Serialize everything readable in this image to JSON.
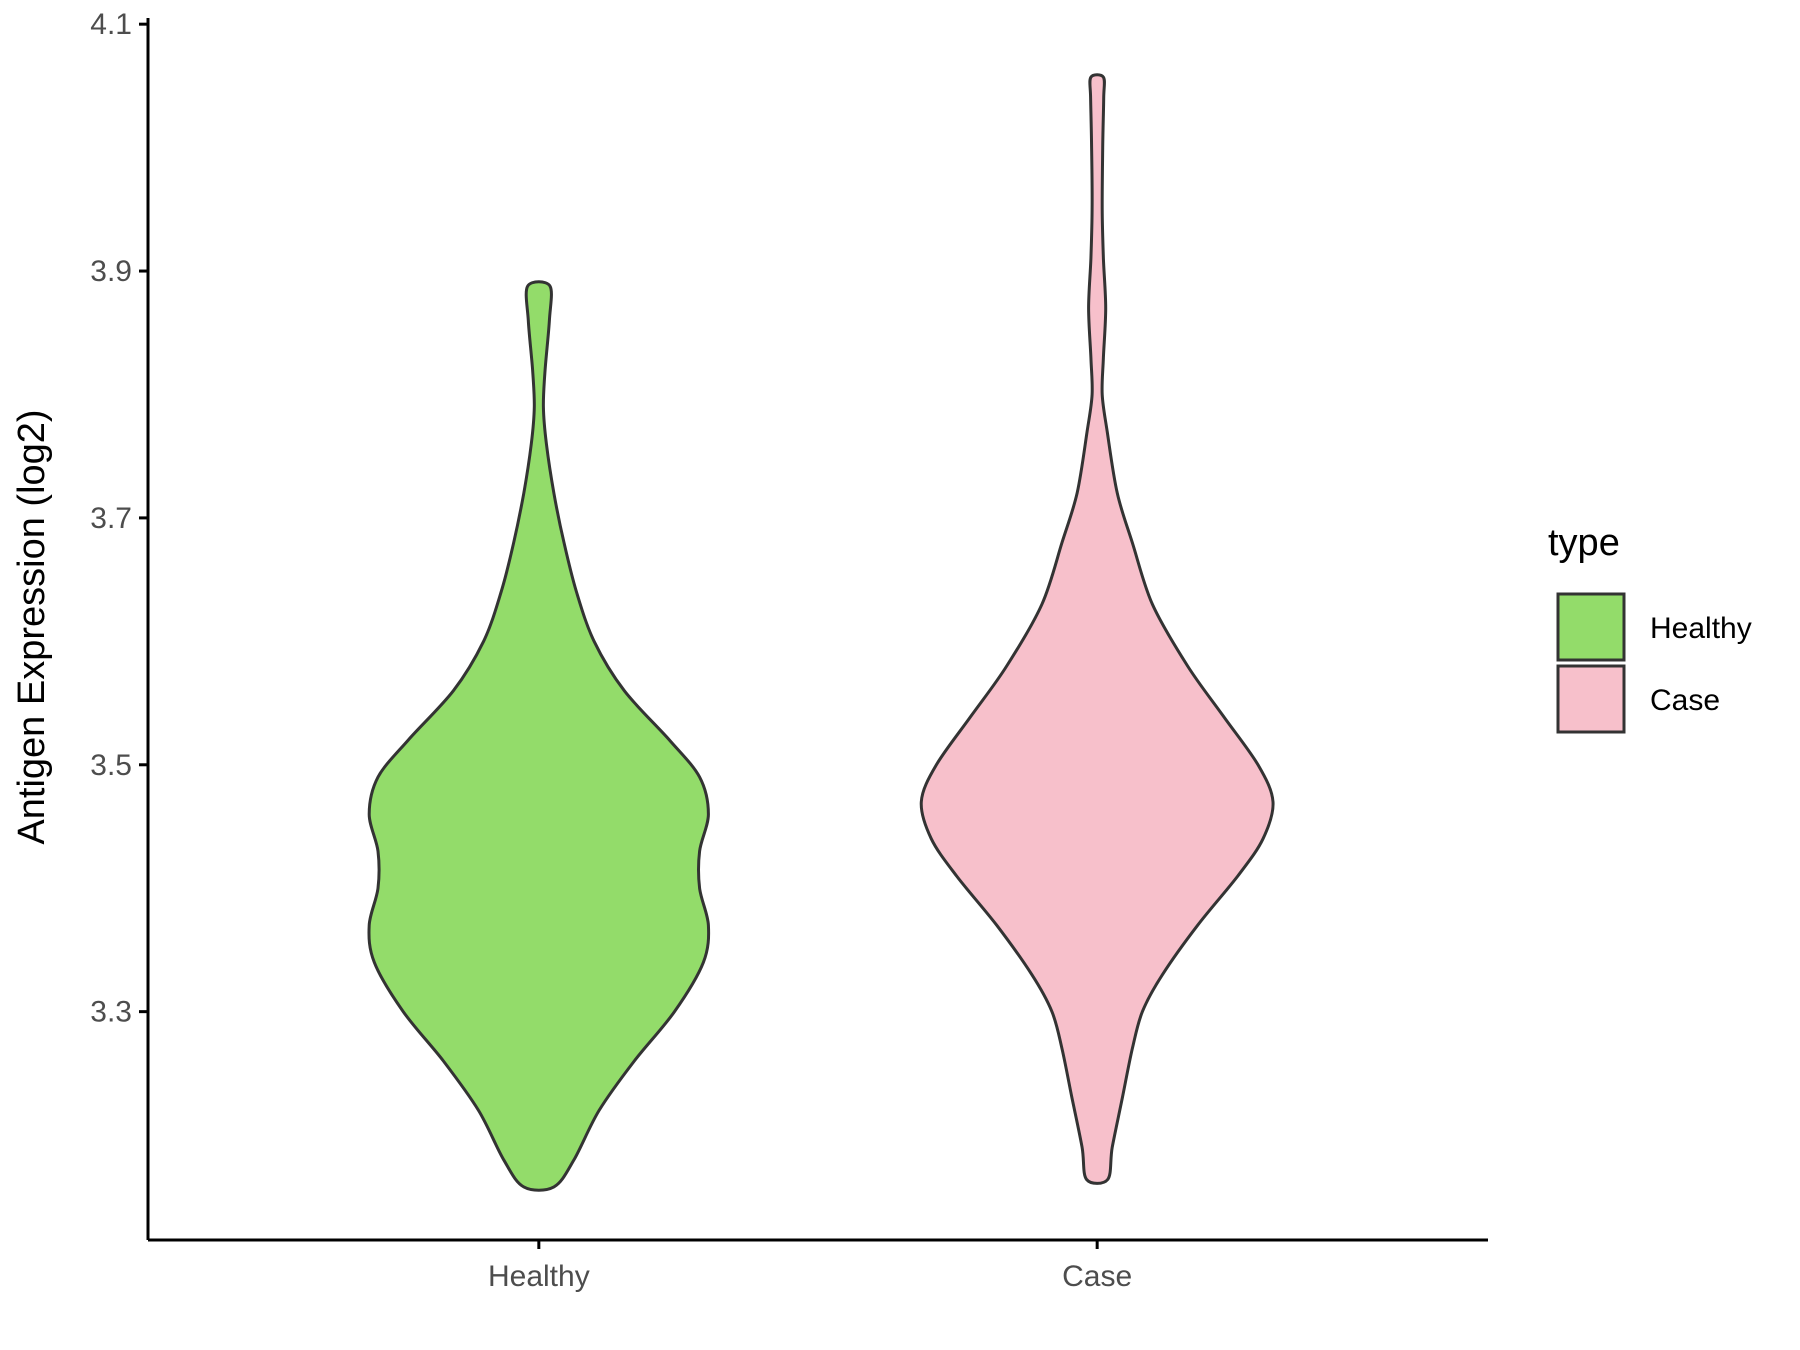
{
  "chart_data": {
    "type": "violin",
    "title": "",
    "xlabel": "",
    "ylabel": "Antigen Expression (log2)",
    "categories": [
      "Healthy",
      "Case"
    ],
    "ylim": [
      3.115,
      4.105
    ],
    "yticks": [
      3.3,
      3.5,
      3.7,
      3.9,
      4.1
    ],
    "ytick_labels": [
      "3.3",
      "3.5",
      "3.7",
      "3.9",
      "4.1"
    ],
    "grid": false,
    "legend": {
      "title": "type",
      "position": "right",
      "entries": [
        {
          "label": "Healthy",
          "color": "#93DC6A"
        },
        {
          "label": "Case",
          "color": "#F7C0CB"
        }
      ]
    },
    "series": [
      {
        "category": "Healthy",
        "color": "#93DC6A",
        "min": 3.158,
        "max": 3.888,
        "profile": [
          [
            3.158,
            0.06
          ],
          [
            3.18,
            0.14
          ],
          [
            3.22,
            0.24
          ],
          [
            3.26,
            0.38
          ],
          [
            3.3,
            0.54
          ],
          [
            3.34,
            0.655
          ],
          [
            3.37,
            0.675
          ],
          [
            3.4,
            0.64
          ],
          [
            3.43,
            0.64
          ],
          [
            3.46,
            0.675
          ],
          [
            3.49,
            0.64
          ],
          [
            3.52,
            0.52
          ],
          [
            3.56,
            0.34
          ],
          [
            3.6,
            0.22
          ],
          [
            3.64,
            0.15
          ],
          [
            3.68,
            0.1
          ],
          [
            3.72,
            0.06
          ],
          [
            3.76,
            0.03
          ],
          [
            3.79,
            0.018
          ],
          [
            3.82,
            0.025
          ],
          [
            3.86,
            0.042
          ],
          [
            3.888,
            0.044
          ]
        ]
      },
      {
        "category": "Case",
        "color": "#F7C0CB",
        "min": 3.164,
        "max": 4.057,
        "profile": [
          [
            3.164,
            0.042
          ],
          [
            3.19,
            0.06
          ],
          [
            3.23,
            0.1
          ],
          [
            3.27,
            0.14
          ],
          [
            3.3,
            0.18
          ],
          [
            3.33,
            0.26
          ],
          [
            3.37,
            0.4
          ],
          [
            3.41,
            0.56
          ],
          [
            3.44,
            0.66
          ],
          [
            3.47,
            0.7
          ],
          [
            3.5,
            0.64
          ],
          [
            3.54,
            0.5
          ],
          [
            3.58,
            0.36
          ],
          [
            3.63,
            0.22
          ],
          [
            3.68,
            0.14
          ],
          [
            3.72,
            0.08
          ],
          [
            3.77,
            0.04
          ],
          [
            3.8,
            0.02
          ],
          [
            3.83,
            0.025
          ],
          [
            3.87,
            0.034
          ],
          [
            3.91,
            0.025
          ],
          [
            3.95,
            0.02
          ],
          [
            4.0,
            0.022
          ],
          [
            4.04,
            0.026
          ],
          [
            4.057,
            0.025
          ]
        ]
      }
    ]
  }
}
